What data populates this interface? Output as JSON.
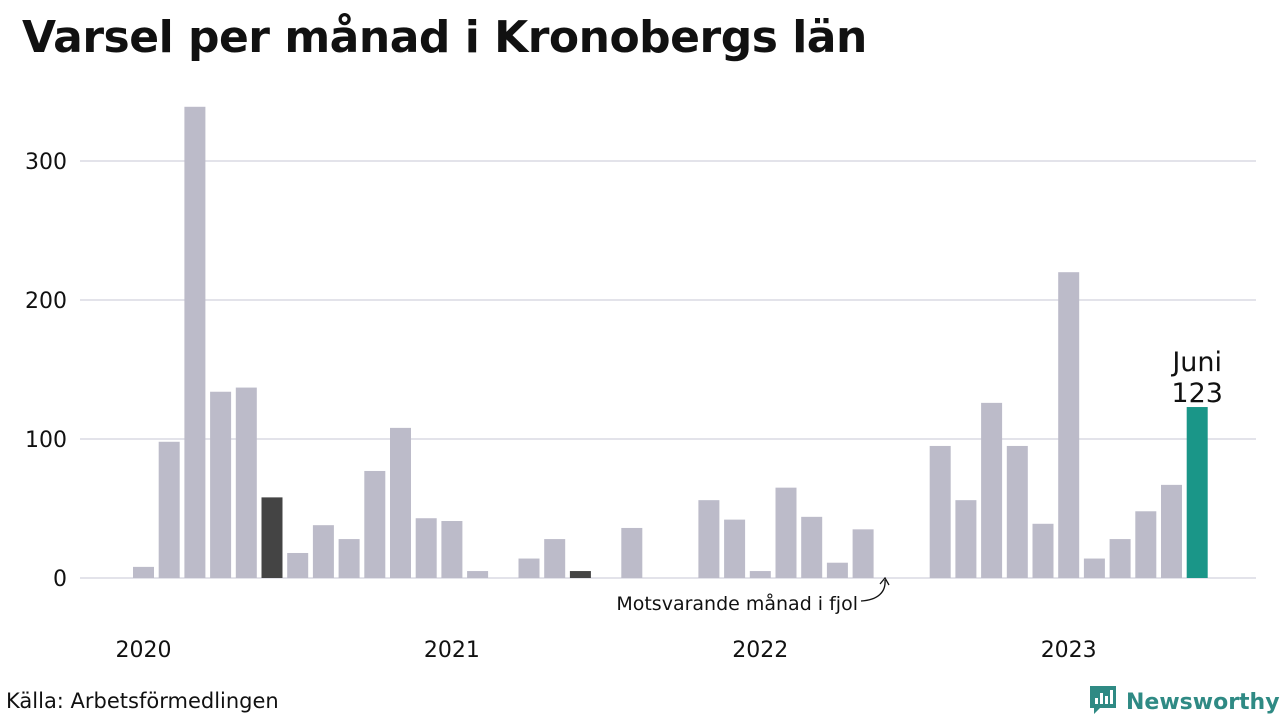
{
  "title": "Varsel per månad i Kronobergs län",
  "source": "Källa: Arbetsförmedlingen",
  "brand": {
    "name": "Newsworthy",
    "icon": "newsworthy-logo-icon",
    "color": "#2f8a84"
  },
  "colors": {
    "bar": "#bcbbc9",
    "highlight": "#1a9688",
    "last_year": "#444444",
    "grid": "#e3e3ea"
  },
  "chart_data": {
    "type": "bar",
    "title": "Varsel per månad i Kronobergs län",
    "xlabel": "",
    "ylabel": "",
    "ylim": [
      0,
      340
    ],
    "yticks": [
      0,
      100,
      200,
      300
    ],
    "year_labels": [
      "2020",
      "2021",
      "2022",
      "2023"
    ],
    "grid": true,
    "categories": [
      "2020-01",
      "2020-02",
      "2020-03",
      "2020-04",
      "2020-05",
      "2020-06",
      "2020-07",
      "2020-08",
      "2020-09",
      "2020-10",
      "2020-11",
      "2020-12",
      "2021-01",
      "2021-02",
      "2021-03",
      "2021-04",
      "2021-05",
      "2021-06",
      "2021-07",
      "2021-08",
      "2021-09",
      "2021-10",
      "2021-11",
      "2021-12",
      "2022-01",
      "2022-02",
      "2022-03",
      "2022-04",
      "2022-05",
      "2022-06",
      "2022-07",
      "2022-08",
      "2022-09",
      "2022-10",
      "2022-11",
      "2022-12",
      "2023-01",
      "2023-02",
      "2023-03",
      "2023-04",
      "2023-05",
      "2023-06"
    ],
    "values": [
      8,
      98,
      339,
      134,
      137,
      58,
      18,
      38,
      28,
      77,
      108,
      43,
      41,
      5,
      0,
      14,
      28,
      5,
      0,
      36,
      0,
      0,
      56,
      42,
      5,
      65,
      44,
      11,
      35,
      0,
      0,
      95,
      56,
      126,
      95,
      39,
      220,
      14,
      28,
      48,
      67,
      123
    ],
    "highlight": {
      "category": "2023-06",
      "label": "Juni",
      "value": 123
    },
    "last_year_marks": [
      "2020-06",
      "2021-06"
    ],
    "annotation": "Motsvarande månad i fjol"
  }
}
